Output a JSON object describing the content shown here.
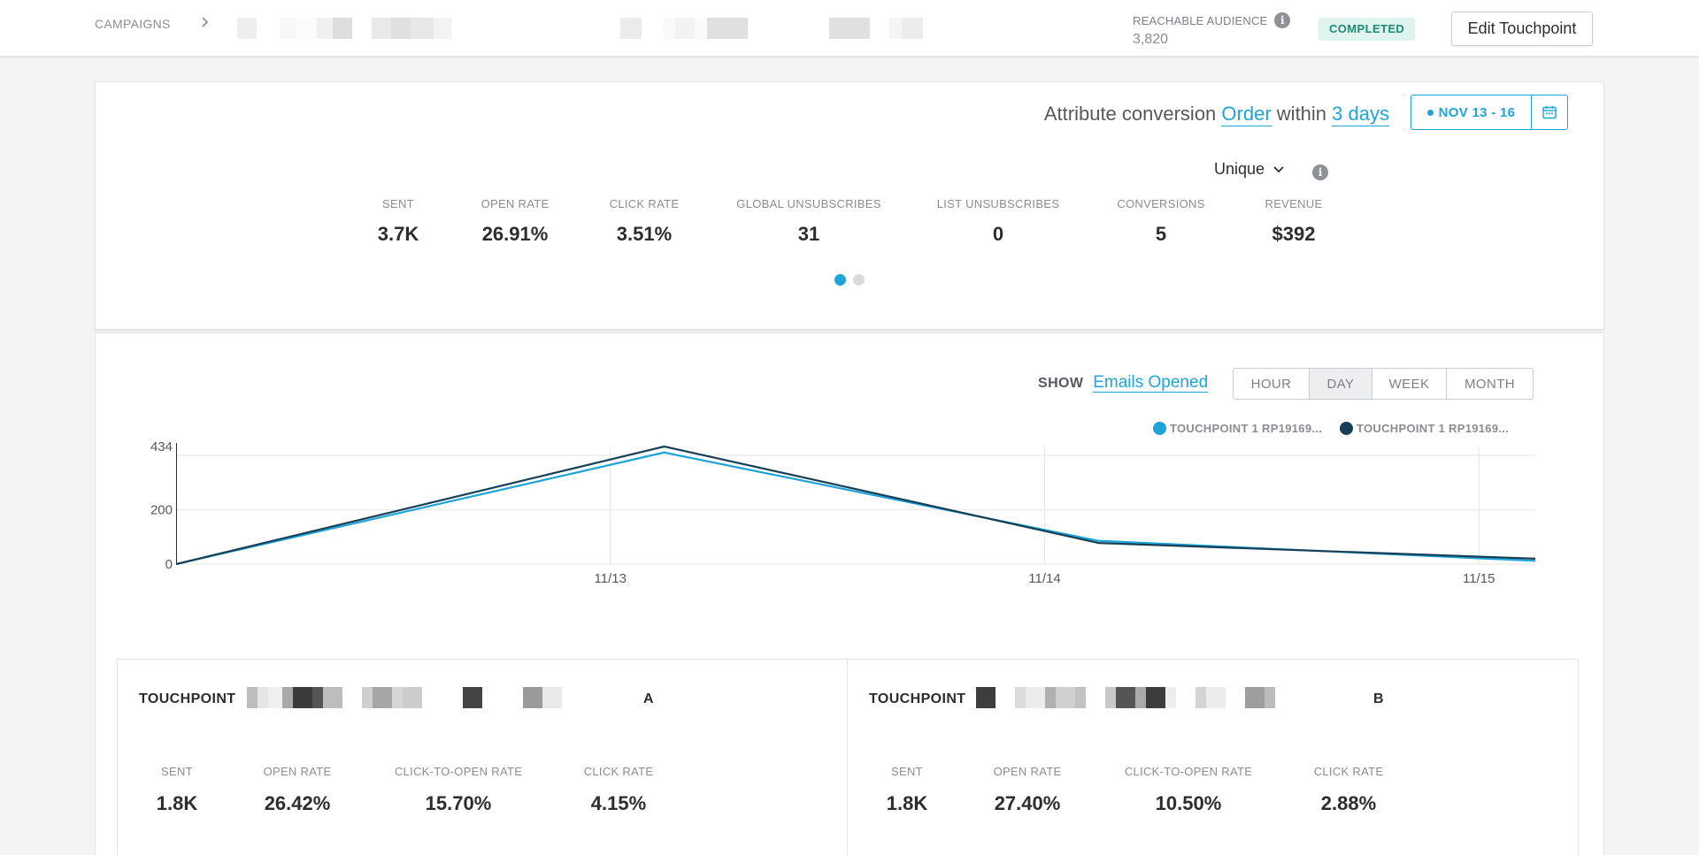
{
  "header": {
    "breadcrumb": "CAMPAIGNS",
    "reachable_label": "REACHABLE AUDIENCE",
    "reachable_value": "3,820",
    "status": "COMPLETED",
    "edit_button": "Edit Touchpoint"
  },
  "summary": {
    "attribute_prefix": "Attribute conversion",
    "attribute_event": "Order",
    "attribute_within": "within",
    "attribute_window": "3 days",
    "date_range": "NOV 13 - 16",
    "count_mode": "Unique",
    "metrics": [
      {
        "label": "SENT",
        "value": "3.7K"
      },
      {
        "label": "OPEN RATE",
        "value": "26.91%"
      },
      {
        "label": "CLICK RATE",
        "value": "3.51%"
      },
      {
        "label": "GLOBAL UNSUBSCRIBES",
        "value": "31"
      },
      {
        "label": "LIST UNSUBSCRIBES",
        "value": "0"
      },
      {
        "label": "CONVERSIONS",
        "value": "5"
      },
      {
        "label": "REVENUE",
        "value": "$392"
      }
    ],
    "page_count": 2,
    "active_page": 1
  },
  "chart_panel": {
    "show_label": "SHOW",
    "show_metric": "Emails Opened",
    "granularity": [
      "HOUR",
      "DAY",
      "WEEK",
      "MONTH"
    ],
    "active_granularity": "DAY"
  },
  "chart_data": {
    "type": "line",
    "y_ticks": [
      "0",
      "200",
      "434"
    ],
    "x_ticks": [
      "11/13",
      "11/14",
      "11/15"
    ],
    "ylim": [
      0,
      434
    ],
    "x_range": [
      0,
      3.13
    ],
    "series": [
      {
        "name": "TOUCHPOINT 1 RP19169...",
        "color": "#1ea4d8",
        "x": [
          0,
          1.124,
          2.124,
          3.13
        ],
        "y": [
          0,
          412,
          86,
          12
        ]
      },
      {
        "name": "TOUCHPOINT 1 RP19169...",
        "color": "#173f57",
        "x": [
          0,
          1.124,
          2.124,
          3.13
        ],
        "y": [
          0,
          434,
          78,
          20
        ]
      }
    ]
  },
  "touchpoints": [
    {
      "title": "TOUCHPOINT",
      "suffix": "A",
      "metrics": [
        {
          "label": "SENT",
          "value": "1.8K"
        },
        {
          "label": "OPEN RATE",
          "value": "26.42%"
        },
        {
          "label": "CLICK-TO-OPEN RATE",
          "value": "15.70%"
        },
        {
          "label": "CLICK RATE",
          "value": "4.15%"
        }
      ]
    },
    {
      "title": "TOUCHPOINT",
      "suffix": "B",
      "metrics": [
        {
          "label": "SENT",
          "value": "1.8K"
        },
        {
          "label": "OPEN RATE",
          "value": "27.40%"
        },
        {
          "label": "CLICK-TO-OPEN RATE",
          "value": "10.50%"
        },
        {
          "label": "CLICK RATE",
          "value": "2.88%"
        }
      ]
    }
  ],
  "colors": {
    "accent": "#1ea4d8",
    "series_dark": "#173f57",
    "status_bg": "#dff3ef",
    "status_text": "#1c8b73"
  }
}
